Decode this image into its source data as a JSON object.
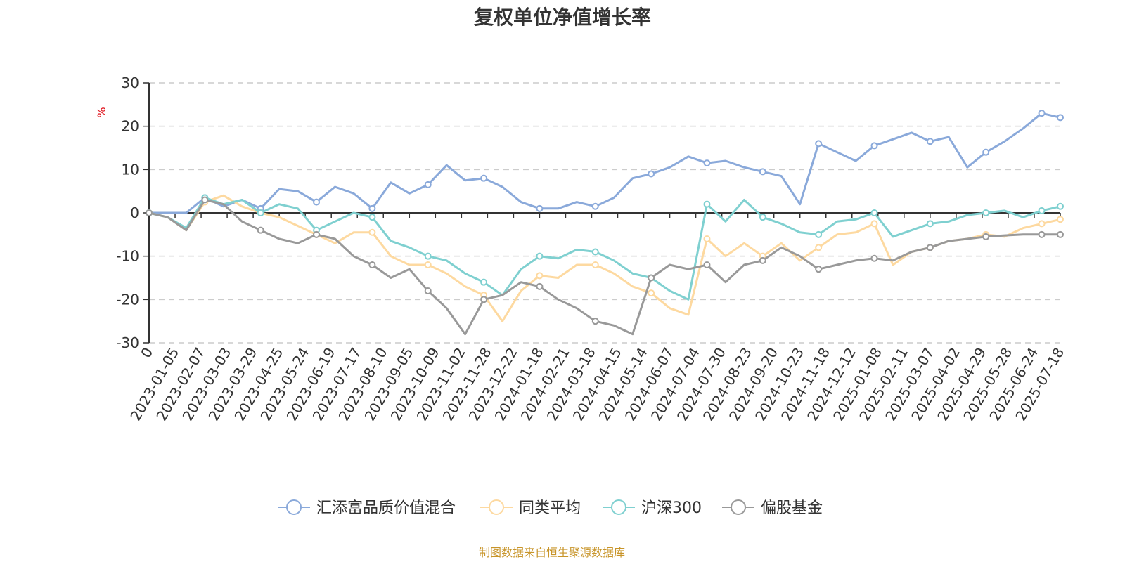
{
  "chart_data": {
    "type": "line",
    "title": "复权单位净值增长率",
    "ylabel": "%",
    "ylim": [
      -30,
      30
    ],
    "yticks": [
      30,
      20,
      10,
      0,
      -10,
      -20,
      -30
    ],
    "grid": true,
    "legend_position": "bottom",
    "source_note": "制图数据来自恒生聚源数据库",
    "x_labels": [
      "0",
      "2023-01-05",
      "2023-02-07",
      "2023-03-03",
      "2023-03-29",
      "2023-04-25",
      "2023-05-24",
      "2023-06-19",
      "2023-07-17",
      "2023-08-10",
      "2023-09-05",
      "2023-10-09",
      "2023-11-02",
      "2023-11-28",
      "2023-12-22",
      "2024-01-18",
      "2024-02-21",
      "2024-03-18",
      "2024-04-15",
      "2024-05-14",
      "2024-06-07",
      "2024-07-04",
      "2024-07-30",
      "2024-08-23",
      "2024-09-20",
      "2024-10-23",
      "2024-11-18",
      "2024-12-12",
      "2025-01-08",
      "2025-02-11",
      "2025-03-07",
      "2025-04-02",
      "2025-04-29",
      "2025-05-28",
      "2025-06-24",
      "2025-07-18"
    ],
    "series": [
      {
        "name": "汇添富品质价值混合",
        "color": "#8aa9da",
        "values": [
          0,
          0,
          0,
          3.5,
          1.5,
          3,
          1,
          5.5,
          5,
          2.5,
          6,
          4.5,
          1,
          7,
          4.5,
          6.5,
          11,
          7.5,
          8,
          6,
          2.5,
          1,
          1,
          2.5,
          1.5,
          3.5,
          8,
          9,
          10.5,
          13,
          11.5,
          12,
          10.5,
          9.5,
          8.5,
          2,
          16,
          14,
          12,
          15.5,
          17,
          18.5,
          16.5,
          17.5,
          10.5,
          14,
          16.5,
          19.5,
          23,
          22
        ]
      },
      {
        "name": "同类平均",
        "color": "#fdd9a0",
        "values": [
          0,
          -1,
          -4,
          2.5,
          4,
          1.5,
          0,
          -1,
          -3,
          -5,
          -7,
          -4.5,
          -4.5,
          -10,
          -12,
          -12,
          -14,
          -17,
          -19,
          -25,
          -18,
          -14.5,
          -15,
          -12,
          -12,
          -14,
          -17,
          -18.5,
          -22,
          -23.5,
          -6,
          -10,
          -7,
          -10,
          -7,
          -11,
          -8,
          -5,
          -4.5,
          -2.5,
          -12,
          -9,
          -8,
          -6.5,
          -6,
          -5,
          -5.5,
          -3.5,
          -2.5,
          -1.5
        ]
      },
      {
        "name": "沪深300",
        "color": "#7fd0d0",
        "values": [
          0,
          -1,
          -3.5,
          3.5,
          2,
          3,
          0,
          2,
          1,
          -4,
          -2,
          0,
          -1,
          -6.5,
          -8,
          -10,
          -11,
          -14,
          -16,
          -19,
          -13,
          -10,
          -10.5,
          -8.5,
          -9,
          -11,
          -14,
          -15,
          -18,
          -20,
          2,
          -2,
          3,
          -1,
          -2.5,
          -4.5,
          -5,
          -2,
          -1.5,
          0,
          -5.5,
          -4,
          -2.5,
          -2,
          -0.5,
          0,
          0.5,
          -1,
          0.5,
          1.5
        ]
      },
      {
        "name": "偏股基金",
        "color": "#999999",
        "values": [
          0,
          -1,
          -4,
          3,
          2,
          -2,
          -4,
          -6,
          -7,
          -5,
          -6,
          -10,
          -12,
          -15,
          -13,
          -18,
          -22,
          -28,
          -20,
          -19,
          -16,
          -17,
          -20,
          -22,
          -25,
          -26,
          -28,
          -15,
          -12,
          -13,
          -12,
          -16,
          -12,
          -11,
          -8,
          -10,
          -13,
          -12,
          -11,
          -10.5,
          -11,
          -9,
          -8,
          -6.5,
          -6,
          -5.5,
          -5.2,
          -5,
          -5,
          -5
        ]
      }
    ]
  }
}
